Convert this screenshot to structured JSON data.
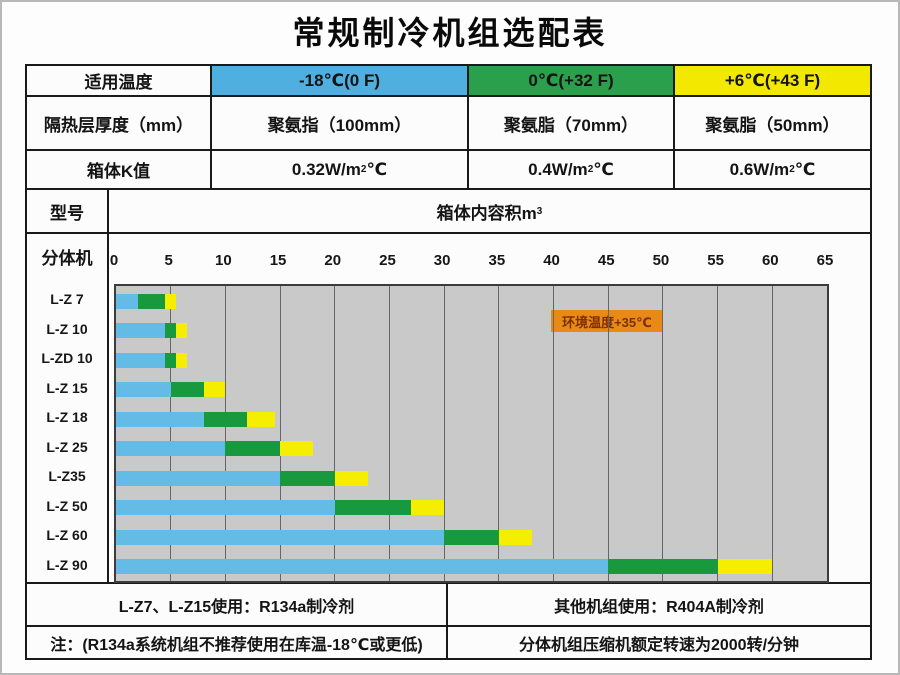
{
  "page": {
    "title": "常规制冷机组选配表"
  },
  "colors": {
    "header_blue": "#4fafe0",
    "header_green": "#2aa04d",
    "header_yellow": "#f2e800",
    "bar_blue": "#63bbe6",
    "bar_green": "#18993e",
    "bar_yellow": "#f6ee00",
    "plot_bg": "#c9c9c9",
    "gridline": "#666666",
    "annotation_bg": "#e88a18",
    "annotation_text": "#7e2f00",
    "border": "#1a1a1a"
  },
  "spec": {
    "temp_row": {
      "label": "适用温度",
      "cells": [
        {
          "text": "-18℃(0 F)"
        },
        {
          "text": "0℃(+32 F)"
        },
        {
          "text": "+6℃(+43 F)"
        }
      ]
    },
    "insulation_row": {
      "label": "隔热层厚度（mm）",
      "cells": [
        "聚氨指（100mm）",
        "聚氨脂（70mm）",
        "聚氨脂（50mm）"
      ]
    },
    "k_row": {
      "label": "箱体K值",
      "cells": [
        {
          "pre": "0.32W/m",
          "sup": "2",
          "post": "℃"
        },
        {
          "pre": "0.4W/m",
          "sup": "2",
          "post": "℃"
        },
        {
          "pre": "0.6W/m",
          "sup": "2",
          "post": "℃"
        }
      ]
    },
    "model_row": {
      "label": "型号",
      "header_pre": "箱体内容积m",
      "header_sup": "3"
    },
    "split_label": "分体机"
  },
  "chart_data": {
    "type": "bar",
    "orientation": "horizontal-stacked",
    "title": "箱体内容积m³",
    "xlabel": "箱体内容积m³",
    "x_ticks": [
      0,
      5,
      10,
      15,
      20,
      25,
      30,
      35,
      40,
      45,
      50,
      55,
      60,
      65
    ],
    "x_max": 65,
    "grid": "vertical-only",
    "annotation": "环境温度+35℃",
    "series_legend": [
      "-18℃(0 F)",
      "0℃(+32 F)",
      "+6℃(+43 F)"
    ],
    "rows": [
      {
        "model": "L-Z 7",
        "ends": [
          2,
          4.5,
          5.5
        ]
      },
      {
        "model": "L-Z 10",
        "ends": [
          4.5,
          5.5,
          6.5
        ]
      },
      {
        "model": "L-ZD 10",
        "ends": [
          4.5,
          5.5,
          6.5
        ]
      },
      {
        "model": "L-Z 15",
        "ends": [
          5,
          8,
          10
        ]
      },
      {
        "model": "L-Z 18",
        "ends": [
          8,
          12,
          14.5
        ]
      },
      {
        "model": "L-Z 25",
        "ends": [
          10,
          15,
          18
        ]
      },
      {
        "model": "L-Z35",
        "ends": [
          15,
          20,
          23
        ]
      },
      {
        "model": "L-Z 50",
        "ends": [
          20,
          27,
          30
        ]
      },
      {
        "model": "L-Z 60",
        "ends": [
          30,
          35,
          38
        ]
      },
      {
        "model": "L-Z 90",
        "ends": [
          45,
          55,
          60
        ]
      }
    ]
  },
  "footer": {
    "refrigerant_left": "L-Z7、L-Z15使用：R134a制冷剂",
    "refrigerant_right": "其他机组使用：R404A制冷剂",
    "note_left": "注：(R134a系统机组不推荐使用在库温-18℃或更低)",
    "note_right": "分体机组压缩机额定转速为2000转/分钟"
  }
}
